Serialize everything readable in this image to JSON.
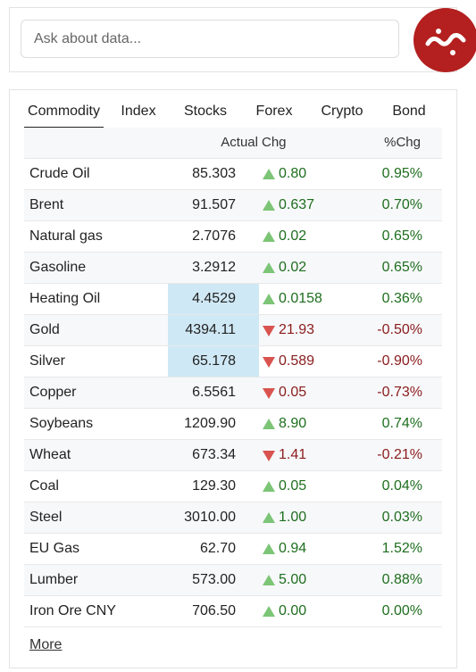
{
  "search": {
    "placeholder": "Ask about data..."
  },
  "tabs": [
    "Commodity",
    "Index",
    "Stocks",
    "Forex",
    "Crypto",
    "Bond"
  ],
  "active_tab": 0,
  "table": {
    "header": [
      "Actual",
      "Chg",
      "%Chg"
    ],
    "rows": [
      {
        "name": "Crude Oil",
        "actual": "85.303",
        "direction": "up",
        "chg": "0.80",
        "pct": "0.95%",
        "highlight": false
      },
      {
        "name": "Brent",
        "actual": "91.507",
        "direction": "up",
        "chg": "0.637",
        "pct": "0.70%",
        "highlight": false
      },
      {
        "name": "Natural gas",
        "actual": "2.7076",
        "direction": "up",
        "chg": "0.02",
        "pct": "0.65%",
        "highlight": false
      },
      {
        "name": "Gasoline",
        "actual": "3.2912",
        "direction": "up",
        "chg": "0.02",
        "pct": "0.65%",
        "highlight": false
      },
      {
        "name": "Heating Oil",
        "actual": "4.4529",
        "direction": "up",
        "chg": "0.0158",
        "pct": "0.36%",
        "highlight": true
      },
      {
        "name": "Gold",
        "actual": "4394.11",
        "direction": "down",
        "chg": "21.93",
        "pct": "-0.50%",
        "highlight": true
      },
      {
        "name": "Silver",
        "actual": "65.178",
        "direction": "down",
        "chg": "0.589",
        "pct": "-0.90%",
        "highlight": true
      },
      {
        "name": "Copper",
        "actual": "6.5561",
        "direction": "down",
        "chg": "0.05",
        "pct": "-0.73%",
        "highlight": false
      },
      {
        "name": "Soybeans",
        "actual": "1209.90",
        "direction": "up",
        "chg": "8.90",
        "pct": "0.74%",
        "highlight": false
      },
      {
        "name": "Wheat",
        "actual": "673.34",
        "direction": "down",
        "chg": "1.41",
        "pct": "-0.21%",
        "highlight": false
      },
      {
        "name": "Coal",
        "actual": "129.30",
        "direction": "up",
        "chg": "0.05",
        "pct": "0.04%",
        "highlight": false
      },
      {
        "name": "Steel",
        "actual": "3010.00",
        "direction": "up",
        "chg": "1.00",
        "pct": "0.03%",
        "highlight": false
      },
      {
        "name": "EU Gas",
        "actual": "62.70",
        "direction": "up",
        "chg": "0.94",
        "pct": "1.52%",
        "highlight": false
      },
      {
        "name": "Lumber",
        "actual": "573.00",
        "direction": "up",
        "chg": "5.00",
        "pct": "0.88%",
        "highlight": false
      },
      {
        "name": "Iron Ore CNY",
        "actual": "706.50",
        "direction": "up",
        "chg": "0.00",
        "pct": "0.00%",
        "highlight": false
      }
    ]
  },
  "more_link": "More"
}
